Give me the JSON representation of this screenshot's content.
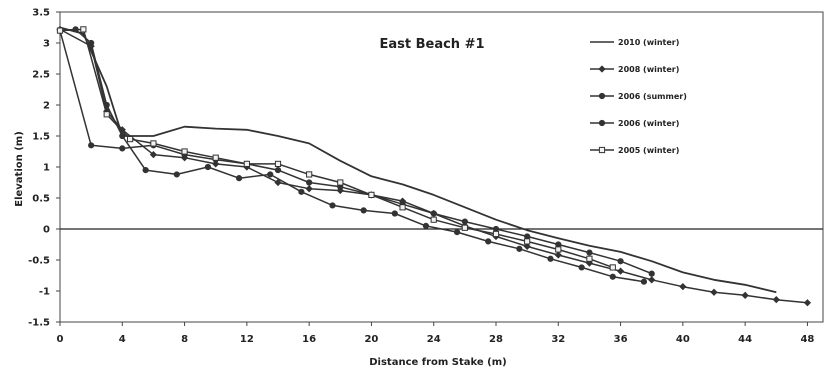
{
  "chart_data": {
    "type": "line",
    "title": "East Beach #1",
    "xlabel": "Distance from Stake (m)",
    "ylabel": "Elevation (m)",
    "xlim": [
      0,
      49
    ],
    "ylim": [
      -1.5,
      3.5
    ],
    "xticks": [
      0,
      4,
      8,
      12,
      16,
      20,
      24,
      28,
      32,
      36,
      40,
      44,
      48
    ],
    "yticks": [
      -1.5,
      -1,
      -0.5,
      0,
      0.5,
      1,
      1.5,
      2,
      2.5,
      3,
      3.5
    ],
    "ytick_labels": [
      "-1.5",
      "-1",
      "-0.5",
      "0",
      "0.5",
      "1",
      "1.5",
      "2",
      "2.5",
      "3",
      "3.5"
    ],
    "grid": false,
    "zero_line": true,
    "legend_position": "top-right",
    "series": [
      {
        "name": "2010 (winter)",
        "marker": "none",
        "color": "#333333",
        "points": [
          [
            0,
            3.25
          ],
          [
            1.5,
            3.15
          ],
          [
            3,
            2.3
          ],
          [
            4,
            1.5
          ],
          [
            6,
            1.5
          ],
          [
            8,
            1.65
          ],
          [
            10,
            1.62
          ],
          [
            12,
            1.6
          ],
          [
            14,
            1.5
          ],
          [
            16,
            1.38
          ],
          [
            18,
            1.1
          ],
          [
            20,
            0.85
          ],
          [
            22,
            0.72
          ],
          [
            24,
            0.55
          ],
          [
            26,
            0.35
          ],
          [
            28,
            0.15
          ],
          [
            30,
            -0.02
          ],
          [
            32,
            -0.15
          ],
          [
            34,
            -0.27
          ],
          [
            36,
            -0.37
          ],
          [
            38,
            -0.52
          ],
          [
            40,
            -0.7
          ],
          [
            42,
            -0.82
          ],
          [
            44,
            -0.9
          ],
          [
            46,
            -1.02
          ]
        ]
      },
      {
        "name": "2008 (winter)",
        "marker": "diamond",
        "color": "#333333",
        "points": [
          [
            0,
            3.22
          ],
          [
            2,
            2.95
          ],
          [
            3,
            1.9
          ],
          [
            4,
            1.6
          ],
          [
            6,
            1.2
          ],
          [
            8,
            1.15
          ],
          [
            10,
            1.05
          ],
          [
            12,
            1.0
          ],
          [
            14,
            0.75
          ],
          [
            16,
            0.65
          ],
          [
            18,
            0.62
          ],
          [
            20,
            0.55
          ],
          [
            22,
            0.45
          ],
          [
            24,
            0.25
          ],
          [
            26,
            0.05
          ],
          [
            28,
            -0.12
          ],
          [
            30,
            -0.28
          ],
          [
            32,
            -0.42
          ],
          [
            34,
            -0.55
          ],
          [
            36,
            -0.68
          ],
          [
            38,
            -0.82
          ],
          [
            40,
            -0.93
          ],
          [
            42,
            -1.02
          ],
          [
            44,
            -1.07
          ],
          [
            46,
            -1.14
          ],
          [
            48,
            -1.19
          ]
        ]
      },
      {
        "name": "2006 (summer)",
        "marker": "circle",
        "color": "#333333",
        "points": [
          [
            0,
            3.2
          ],
          [
            2,
            1.35
          ],
          [
            4,
            1.3
          ],
          [
            6,
            1.35
          ],
          [
            8,
            1.2
          ],
          [
            10,
            1.12
          ],
          [
            12,
            1.05
          ],
          [
            14,
            0.95
          ],
          [
            16,
            0.75
          ],
          [
            18,
            0.68
          ],
          [
            20,
            0.55
          ],
          [
            22,
            0.4
          ],
          [
            24,
            0.25
          ],
          [
            26,
            0.12
          ],
          [
            28,
            0.0
          ],
          [
            30,
            -0.12
          ],
          [
            32,
            -0.25
          ],
          [
            34,
            -0.38
          ],
          [
            36,
            -0.52
          ],
          [
            38,
            -0.72
          ]
        ]
      },
      {
        "name": "2006 (winter)",
        "marker": "circle",
        "color": "#333333",
        "points": [
          [
            0,
            3.2
          ],
          [
            1,
            3.22
          ],
          [
            2,
            3.0
          ],
          [
            3,
            2.0
          ],
          [
            4,
            1.5
          ],
          [
            5.5,
            0.95
          ],
          [
            7.5,
            0.88
          ],
          [
            9.5,
            1.0
          ],
          [
            11.5,
            0.82
          ],
          [
            13.5,
            0.88
          ],
          [
            15.5,
            0.6
          ],
          [
            17.5,
            0.38
          ],
          [
            19.5,
            0.3
          ],
          [
            21.5,
            0.25
          ],
          [
            23.5,
            0.05
          ],
          [
            25.5,
            -0.05
          ],
          [
            27.5,
            -0.2
          ],
          [
            29.5,
            -0.32
          ],
          [
            31.5,
            -0.48
          ],
          [
            33.5,
            -0.62
          ],
          [
            35.5,
            -0.77
          ],
          [
            37.5,
            -0.85
          ]
        ]
      },
      {
        "name": "2005 (winter)",
        "marker": "square",
        "color": "#333333",
        "points": [
          [
            0,
            3.2
          ],
          [
            1.5,
            3.22
          ],
          [
            3,
            1.85
          ],
          [
            4.5,
            1.45
          ],
          [
            6,
            1.38
          ],
          [
            8,
            1.25
          ],
          [
            10,
            1.15
          ],
          [
            12,
            1.05
          ],
          [
            14,
            1.05
          ],
          [
            16,
            0.88
          ],
          [
            18,
            0.75
          ],
          [
            20,
            0.55
          ],
          [
            22,
            0.35
          ],
          [
            24,
            0.15
          ],
          [
            26,
            0.02
          ],
          [
            28,
            -0.08
          ],
          [
            30,
            -0.2
          ],
          [
            32,
            -0.33
          ],
          [
            34,
            -0.48
          ],
          [
            35.5,
            -0.62
          ]
        ]
      }
    ]
  }
}
